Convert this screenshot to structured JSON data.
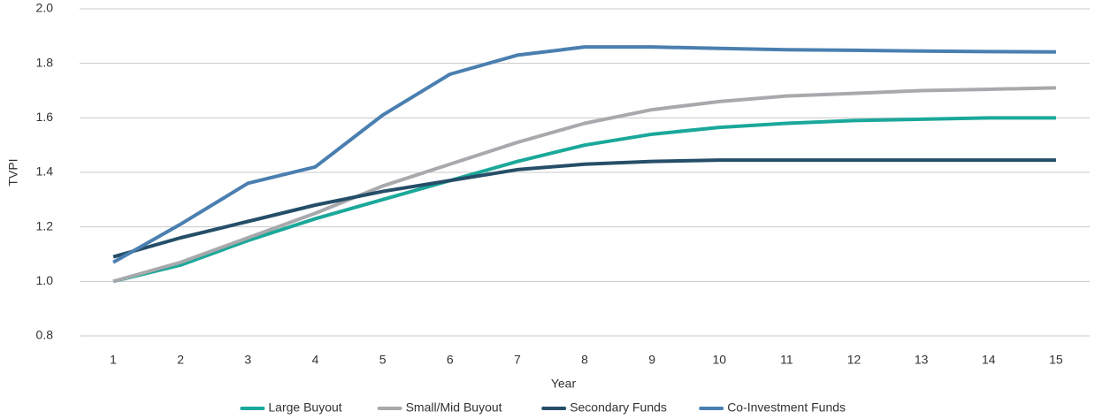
{
  "chart_data": {
    "type": "line",
    "categories": [
      "1",
      "2",
      "3",
      "4",
      "5",
      "6",
      "7",
      "8",
      "9",
      "10",
      "11",
      "12",
      "13",
      "14",
      "15"
    ],
    "series": [
      {
        "name": "Large Buyout",
        "color": "#1aa89a",
        "values": [
          1.0,
          1.06,
          1.15,
          1.23,
          1.3,
          1.37,
          1.44,
          1.5,
          1.54,
          1.565,
          1.58,
          1.59,
          1.595,
          1.6,
          1.6
        ]
      },
      {
        "name": "Small/Mid Buyout",
        "color": "#a7a9ac",
        "values": [
          1.0,
          1.07,
          1.16,
          1.25,
          1.35,
          1.43,
          1.51,
          1.58,
          1.63,
          1.66,
          1.68,
          1.69,
          1.7,
          1.705,
          1.71
        ]
      },
      {
        "name": "Secondary Funds",
        "color": "#254e68",
        "values": [
          1.09,
          1.16,
          1.22,
          1.28,
          1.33,
          1.37,
          1.41,
          1.43,
          1.44,
          1.445,
          1.445,
          1.445,
          1.445,
          1.445,
          1.445
        ]
      },
      {
        "name": "Co-Investment Funds",
        "color": "#4a7fb0",
        "values": [
          1.07,
          1.21,
          1.36,
          1.42,
          1.61,
          1.76,
          1.83,
          1.86,
          1.86,
          1.855,
          1.85,
          1.848,
          1.845,
          1.843,
          1.842
        ]
      }
    ],
    "xlabel": "Year",
    "ylabel": "TVPI",
    "ylim": [
      0.8,
      2.0
    ],
    "yticks": [
      0.8,
      {
        "value": 1,
        "label": "1.0"
      },
      1.2,
      1.4,
      1.6,
      1.8,
      {
        "value": 2,
        "label": "2.0"
      }
    ],
    "grid": true,
    "legend": "bottom"
  }
}
